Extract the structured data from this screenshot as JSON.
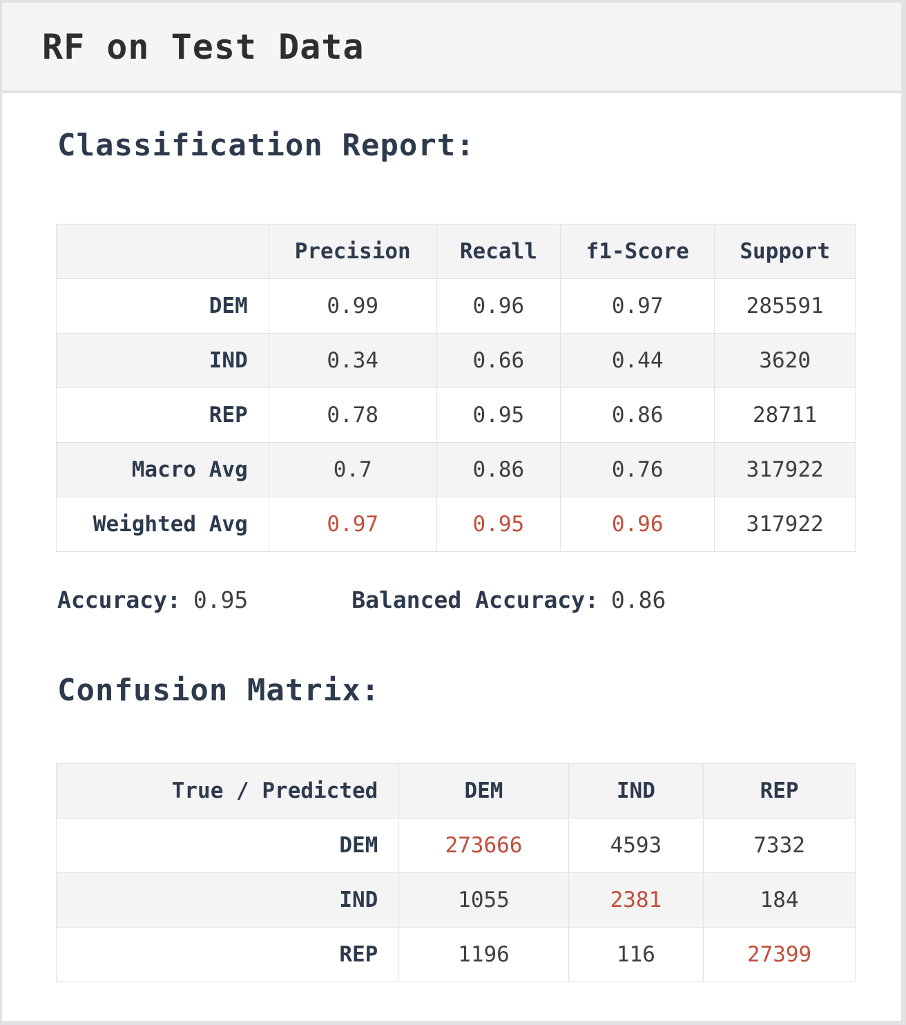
{
  "window": {
    "title": "RF on Test Data"
  },
  "colors": {
    "highlight_red": "#c14f3b",
    "label_dark_slate": "#2d3a4d",
    "value_gray": "#3e3e40",
    "zebra_gray": "#f4f4f5",
    "header_band_gray": "#f5f5f6"
  },
  "classification_report": {
    "title": "Classification Report:",
    "columns": [
      "",
      "Precision",
      "Recall",
      "f1-Score",
      "Support"
    ],
    "rows": [
      {
        "label": "DEM",
        "precision": "0.99",
        "recall": "0.96",
        "f1": "0.97",
        "support": "285591"
      },
      {
        "label": "IND",
        "precision": "0.34",
        "recall": "0.66",
        "f1": "0.44",
        "support": "3620"
      },
      {
        "label": "REP",
        "precision": "0.78",
        "recall": "0.95",
        "f1": "0.86",
        "support": "28711"
      },
      {
        "label": "Macro Avg",
        "precision": "0.7",
        "recall": "0.86",
        "f1": "0.76",
        "support": "317922"
      },
      {
        "label": "Weighted Avg",
        "precision": "0.97",
        "recall": "0.95",
        "f1": "0.96",
        "support": "317922"
      }
    ],
    "accuracy_label": "Accuracy:",
    "accuracy_value": "0.95",
    "balanced_accuracy_label": "Balanced Accuracy:",
    "balanced_accuracy_value": "0.86"
  },
  "confusion_matrix": {
    "title": "Confusion Matrix:",
    "columns": [
      "True / Predicted",
      "DEM",
      "IND",
      "REP"
    ],
    "rows": [
      {
        "label": "DEM",
        "dem": "273666",
        "ind": "4593",
        "rep": "7332"
      },
      {
        "label": "IND",
        "dem": "1055",
        "ind": "2381",
        "rep": "184"
      },
      {
        "label": "REP",
        "dem": "1196",
        "ind": "116",
        "rep": "27399"
      }
    ]
  },
  "chart_data": [
    {
      "type": "table",
      "title": "Classification Report",
      "columns": [
        "",
        "Precision",
        "Recall",
        "f1-Score",
        "Support"
      ],
      "rows": [
        [
          "DEM",
          0.99,
          0.96,
          0.97,
          285591
        ],
        [
          "IND",
          0.34,
          0.66,
          0.44,
          3620
        ],
        [
          "REP",
          0.78,
          0.95,
          0.86,
          28711
        ],
        [
          "Macro Avg",
          0.7,
          0.86,
          0.76,
          317922
        ],
        [
          "Weighted Avg",
          0.97,
          0.95,
          0.96,
          317922
        ]
      ],
      "accuracy": 0.95,
      "balanced_accuracy": 0.86
    },
    {
      "type": "heatmap",
      "title": "Confusion Matrix",
      "columns": [
        "True / Predicted",
        "DEM",
        "IND",
        "REP"
      ],
      "rows": [
        [
          "DEM",
          273666,
          4593,
          7332
        ],
        [
          "IND",
          1055,
          2381,
          184
        ],
        [
          "REP",
          1196,
          116,
          27399
        ]
      ]
    }
  ]
}
